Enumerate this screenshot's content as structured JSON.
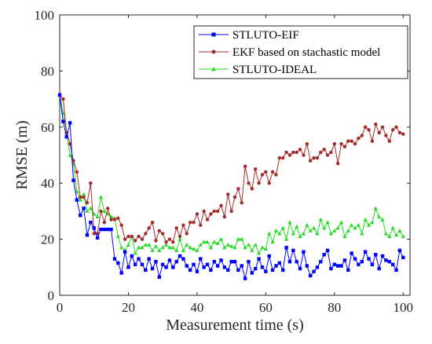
{
  "chart_data": {
    "type": "line",
    "title": "",
    "xlabel": "Measurement time (s)",
    "ylabel": "RMSE (m)",
    "xlim": [
      0,
      102
    ],
    "ylim": [
      0,
      100
    ],
    "x_ticks": [
      0,
      20,
      40,
      60,
      80,
      100
    ],
    "y_ticks": [
      0,
      20,
      40,
      60,
      80,
      100
    ],
    "grid": false,
    "legend_position": "top-right",
    "series": [
      {
        "name": "STLUTO-EIF",
        "color": "#0000ff",
        "marker": "square",
        "values": [
          71.5,
          62.0,
          56.5,
          61.5,
          41.0,
          34.0,
          28.5,
          31.0,
          21.5,
          26.0,
          24.0,
          20.5,
          23.5,
          23.5,
          23.5,
          23.5,
          13.0,
          11.5,
          8.0,
          15.5,
          10.0,
          14.0,
          11.0,
          13.0,
          11.0,
          9.0,
          13.0,
          9.5,
          12.0,
          6.5,
          11.0,
          10.0,
          12.5,
          10.0,
          12.0,
          14.0,
          13.0,
          10.5,
          9.0,
          11.0,
          8.5,
          13.0,
          10.0,
          11.0,
          9.0,
          12.0,
          10.5,
          12.5,
          10.0,
          9.0,
          12.0,
          12.0,
          9.0,
          10.5,
          6.0,
          12.0,
          8.0,
          9.5,
          13.0,
          10.0,
          8.5,
          14.0,
          9.0,
          10.5,
          11.5,
          9.0,
          17.0,
          12.0,
          16.0,
          12.0,
          9.5,
          15.5,
          10.5,
          7.0,
          8.5,
          10.0,
          12.0,
          14.5,
          16.0,
          9.5,
          11.0,
          10.5,
          10.5,
          12.5,
          9.0,
          15.0,
          13.0,
          11.0,
          12.0,
          15.5,
          13.0,
          11.0,
          14.5,
          9.5,
          14.0,
          12.5,
          12.0,
          11.0,
          9.0,
          16.0,
          13.5
        ],
        "x": [
          0,
          1,
          2,
          3,
          4,
          5,
          6,
          7,
          8,
          9,
          10,
          11,
          12,
          13,
          14,
          15,
          16,
          17,
          18,
          19,
          20,
          21,
          22,
          23,
          24,
          25,
          26,
          27,
          28,
          29,
          30,
          31,
          32,
          33,
          34,
          35,
          36,
          37,
          38,
          39,
          40,
          41,
          42,
          43,
          44,
          45,
          46,
          47,
          48,
          49,
          50,
          51,
          52,
          53,
          54,
          55,
          56,
          57,
          58,
          59,
          60,
          61,
          62,
          63,
          64,
          65,
          66,
          67,
          68,
          69,
          70,
          71,
          72,
          73,
          74,
          75,
          76,
          77,
          78,
          79,
          80,
          81,
          82,
          83,
          84,
          85,
          86,
          87,
          88,
          89,
          90,
          91,
          92,
          93,
          94,
          95,
          96,
          97,
          98,
          99,
          100
        ]
      },
      {
        "name": "EKF based on stachastic model",
        "color": "#a52a2a",
        "marker": "circle",
        "values": [
          71.5,
          70.0,
          58.0,
          54.0,
          48.0,
          44.0,
          35.0,
          35.0,
          33.0,
          40.0,
          22.0,
          22.0,
          30.0,
          26.0,
          31.0,
          27.0,
          27.0,
          27.5,
          25.0,
          20.0,
          21.0,
          21.0,
          19.5,
          21.0,
          20.0,
          22.0,
          24.0,
          26.0,
          19.5,
          23.0,
          22.0,
          19.0,
          20.0,
          19.0,
          24.0,
          21.0,
          25.0,
          22.0,
          26.0,
          26.0,
          29.0,
          25.0,
          30.0,
          27.0,
          29.0,
          30.0,
          30.0,
          32.0,
          28.0,
          36.0,
          30.0,
          35.0,
          38.0,
          33.0,
          46.0,
          40.0,
          38.0,
          45.0,
          40.0,
          43.0,
          44.0,
          40.0,
          44.0,
          43.0,
          49.0,
          49.0,
          51.0,
          50.0,
          51.0,
          51.0,
          52.0,
          50.0,
          54.0,
          48.0,
          49.0,
          49.0,
          51.0,
          52.0,
          50.0,
          51.0,
          54.0,
          47.0,
          54.0,
          53.0,
          55.0,
          55.0,
          54.0,
          56.0,
          57.0,
          60.0,
          59.0,
          55.0,
          61.0,
          58.0,
          60.0,
          57.0,
          55.0,
          59.0,
          60.0,
          58.0,
          57.5
        ],
        "x": [
          0,
          1,
          2,
          3,
          4,
          5,
          6,
          7,
          8,
          9,
          10,
          11,
          12,
          13,
          14,
          15,
          16,
          17,
          18,
          19,
          20,
          21,
          22,
          23,
          24,
          25,
          26,
          27,
          28,
          29,
          30,
          31,
          32,
          33,
          34,
          35,
          36,
          37,
          38,
          39,
          40,
          41,
          42,
          43,
          44,
          45,
          46,
          47,
          48,
          49,
          50,
          51,
          52,
          53,
          54,
          55,
          56,
          57,
          58,
          59,
          60,
          61,
          62,
          63,
          64,
          65,
          66,
          67,
          68,
          69,
          70,
          71,
          72,
          73,
          74,
          75,
          76,
          77,
          78,
          79,
          80,
          81,
          82,
          83,
          84,
          85,
          86,
          87,
          88,
          89,
          90,
          91,
          92,
          93,
          94,
          95,
          96,
          97,
          98,
          99,
          100
        ]
      },
      {
        "name": "STLUTO-IDEAL",
        "color": "#22dd22",
        "marker": "triangle",
        "values": [
          71.5,
          65.0,
          58.0,
          50.0,
          47.0,
          37.0,
          34.0,
          36.0,
          30.0,
          31.0,
          29.0,
          28.0,
          35.0,
          30.0,
          29.0,
          28.0,
          27.5,
          21.0,
          17.0,
          16.0,
          18.0,
          21.0,
          15.0,
          17.0,
          17.0,
          18.0,
          18.0,
          16.0,
          17.5,
          16.0,
          17.0,
          18.0,
          17.0,
          17.0,
          16.0,
          20.0,
          16.0,
          18.0,
          17.0,
          16.5,
          16.0,
          18.0,
          19.0,
          19.0,
          17.0,
          19.0,
          18.5,
          20.0,
          17.0,
          18.0,
          17.5,
          17.0,
          20.0,
          20.0,
          17.0,
          18.0,
          16.0,
          18.0,
          15.0,
          17.0,
          16.5,
          22.0,
          19.0,
          23.0,
          22.0,
          24.0,
          20.0,
          26.0,
          22.0,
          24.5,
          21.0,
          22.0,
          25.0,
          23.0,
          24.0,
          22.0,
          27.0,
          24.0,
          26.0,
          22.0,
          23.0,
          24.0,
          26.0,
          21.0,
          23.0,
          25.0,
          24.0,
          25.0,
          22.0,
          27.0,
          25.0,
          26.0,
          31.0,
          28.0,
          27.0,
          22.0,
          21.0,
          24.0,
          21.5,
          23.0,
          21.0
        ],
        "x": [
          0,
          1,
          2,
          3,
          4,
          5,
          6,
          7,
          8,
          9,
          10,
          11,
          12,
          13,
          14,
          15,
          16,
          17,
          18,
          19,
          20,
          21,
          22,
          23,
          24,
          25,
          26,
          27,
          28,
          29,
          30,
          31,
          32,
          33,
          34,
          35,
          36,
          37,
          38,
          39,
          40,
          41,
          42,
          43,
          44,
          45,
          46,
          47,
          48,
          49,
          50,
          51,
          52,
          53,
          54,
          55,
          56,
          57,
          58,
          59,
          60,
          61,
          62,
          63,
          64,
          65,
          66,
          67,
          68,
          69,
          70,
          71,
          72,
          73,
          74,
          75,
          76,
          77,
          78,
          79,
          80,
          81,
          82,
          83,
          84,
          85,
          86,
          87,
          88,
          89,
          90,
          91,
          92,
          93,
          94,
          95,
          96,
          97,
          98,
          99,
          100
        ]
      }
    ]
  }
}
